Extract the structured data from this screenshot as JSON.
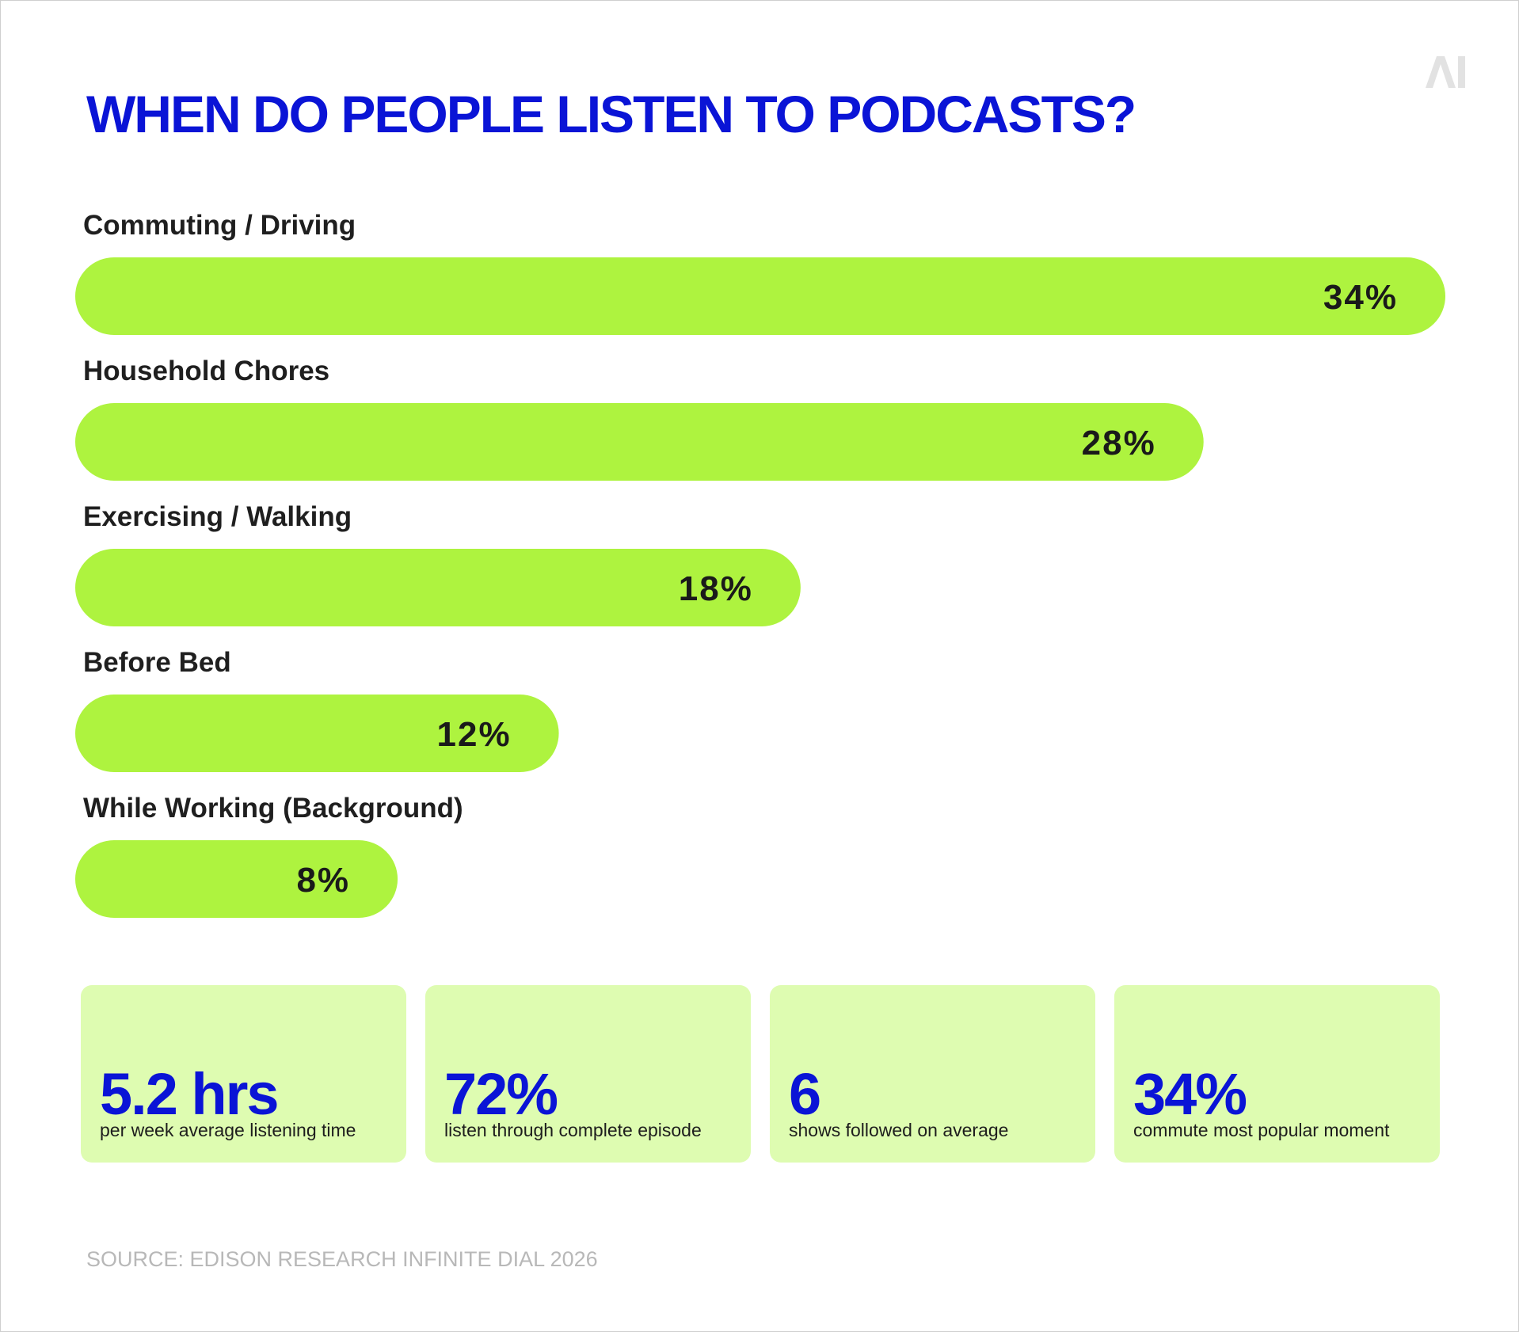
{
  "title": "WHEN DO PEOPLE LISTEN TO PODCASTS?",
  "logo_text": "AI",
  "colors": {
    "title": "#0a14d6",
    "bar": "#aef33f",
    "card": "#defcb1",
    "source": "#b8b8b8"
  },
  "chart_data": {
    "type": "bar",
    "orientation": "horizontal",
    "title": "WHEN DO PEOPLE LISTEN TO PODCASTS?",
    "categories": [
      "Commuting / Driving",
      "Household Chores",
      "Exercising / Walking",
      "Before Bed",
      "While Working (Background)"
    ],
    "values": [
      34,
      28,
      18,
      12,
      8
    ],
    "value_labels": [
      "34%",
      "28%",
      "18%",
      "12%",
      "8%"
    ],
    "xlim": [
      0,
      34
    ],
    "grid": false,
    "legend": "none"
  },
  "stats": [
    {
      "value": "5.2 hrs",
      "caption": "per week average listening time"
    },
    {
      "value": "72%",
      "caption": "listen through complete episode"
    },
    {
      "value": "6",
      "caption": "shows followed on average"
    },
    {
      "value": "34%",
      "caption": "commute most popular moment"
    }
  ],
  "source": "SOURCE: EDISON RESEARCH INFINITE DIAL 2026"
}
